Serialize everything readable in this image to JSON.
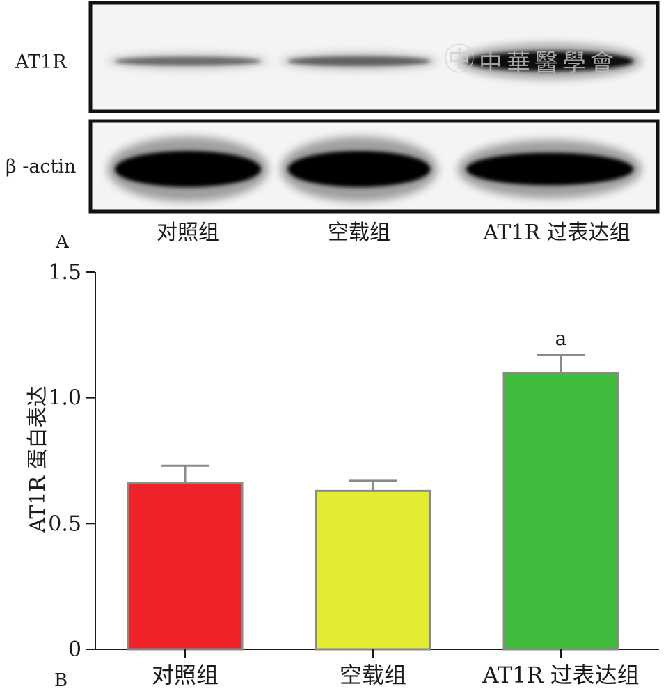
{
  "panel_a": {
    "letter": "A",
    "rows": [
      {
        "label": "AT1R",
        "bands": [
          {
            "intensity": 0.58,
            "thickness": 0.45
          },
          {
            "intensity": 0.62,
            "thickness": 0.5
          },
          {
            "intensity": 0.95,
            "thickness": 1.0
          }
        ]
      },
      {
        "label": "β -actin",
        "bands": [
          {
            "intensity": 1.0,
            "thickness": 1.0
          },
          {
            "intensity": 1.0,
            "thickness": 1.0
          },
          {
            "intensity": 1.0,
            "thickness": 0.9
          }
        ]
      }
    ],
    "lanes": [
      "对照组",
      "空载组",
      "AT1R 过表达组"
    ],
    "watermark": "中華醫學會"
  },
  "panel_b": {
    "letter": "B"
  },
  "chart_data": {
    "type": "bar",
    "categories": [
      "对照组",
      "空载组",
      "AT1R 过表达组"
    ],
    "values": [
      0.66,
      0.63,
      1.1
    ],
    "errors": [
      0.07,
      0.04,
      0.07
    ],
    "annotations": [
      "",
      "",
      "a"
    ],
    "colors": [
      "#ee2229",
      "#e3eb33",
      "#40bb3c"
    ],
    "ylabel": "AT1R 蛋白表达",
    "ylim": [
      0,
      1.5
    ],
    "yticks": [
      0,
      0.5,
      1.0,
      1.5
    ],
    "ytick_labels": [
      "0",
      "0.5",
      "1.0",
      "1.5"
    ],
    "grid": false
  }
}
